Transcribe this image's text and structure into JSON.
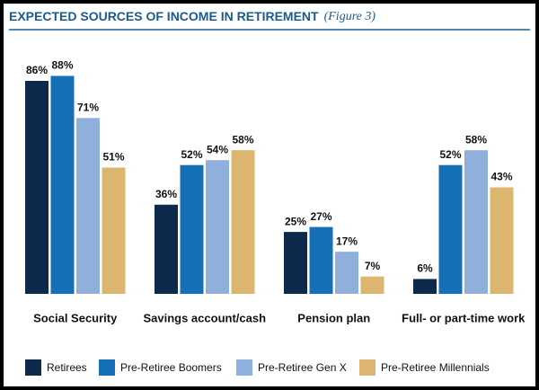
{
  "chart_data": {
    "type": "bar",
    "title": "EXPECTED SOURCES OF INCOME IN RETIREMENT",
    "subtitle": "(Figure 3)",
    "categories": [
      "Social Security",
      "Savings account/cash",
      "Pension plan",
      "Full- or part-time work"
    ],
    "series": [
      {
        "name": "Retirees",
        "color": "#0d2a4d",
        "values": [
          86,
          36,
          25,
          6
        ],
        "value_labels": [
          "86%",
          "36%",
          "25%",
          "6%"
        ]
      },
      {
        "name": "Pre-Retiree Boomers",
        "color": "#1570b8",
        "values": [
          88,
          52,
          27,
          52
        ],
        "value_labels": [
          "88%",
          "52%",
          "27%",
          "52%"
        ]
      },
      {
        "name": "Pre-Retiree Gen X",
        "color": "#8fb0dc",
        "values": [
          71,
          54,
          17,
          58
        ],
        "value_labels": [
          "71%",
          "54%",
          "17%",
          "58%"
        ]
      },
      {
        "name": "Pre-Retiree Millennials",
        "color": "#dcb56e",
        "values": [
          51,
          58,
          7,
          43
        ],
        "value_labels": [
          "51%",
          "58%",
          "7%",
          "43%"
        ]
      }
    ]
  }
}
